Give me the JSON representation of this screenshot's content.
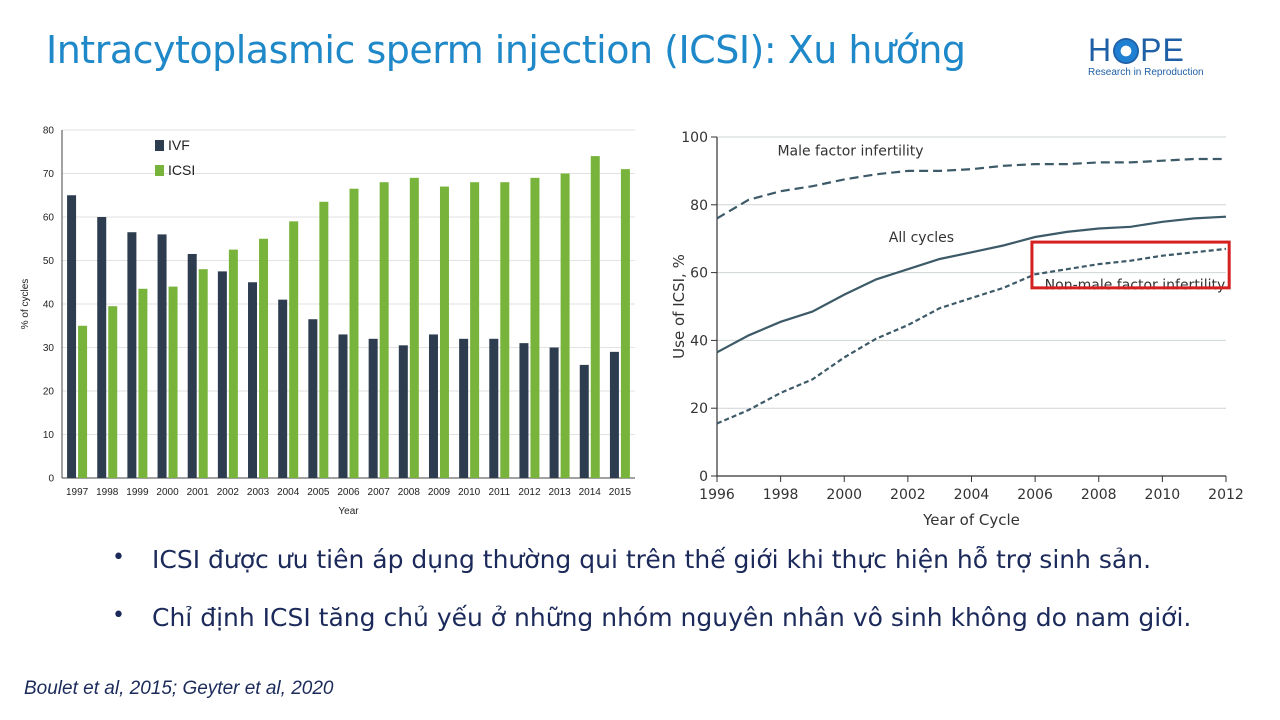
{
  "slide": {
    "title": "Intracytoplasmic sperm injection (ICSI): Xu hướng",
    "logo": {
      "word_left": "H",
      "word_right": "PE",
      "subtitle": "Research in Reproduction"
    },
    "bullets": [
      {
        "symbol": "•",
        "text": "ICSI được ưu tiên áp dụng thường qui trên thế giới khi thực hiện hỗ trợ sinh sản."
      },
      {
        "symbol": "•",
        "text": "Chỉ định ICSI tăng chủ yếu ở những nhóm nguyên nhân vô sinh không do nam giới."
      }
    ],
    "citation": "Boulet et al, 2015; Geyter et al, 2020"
  },
  "colors": {
    "title": "#1e88c8",
    "ivf": "#2d3c4e",
    "icsi": "#78b43c",
    "line": "#3d5a68",
    "highlight_box": "#d42020",
    "text": "#1b2a5a"
  },
  "chart_data": [
    {
      "type": "bar",
      "title": "",
      "xlabel": "Year",
      "ylabel": "% of cycles",
      "ylim": [
        0,
        80
      ],
      "yticks": [
        0,
        10,
        20,
        30,
        40,
        50,
        60,
        70,
        80
      ],
      "categories": [
        "1997",
        "1998",
        "1999",
        "2000",
        "2001",
        "2002",
        "2003",
        "2004",
        "2005",
        "2006",
        "2007",
        "2008",
        "2009",
        "2010",
        "2011",
        "2012",
        "2013",
        "2014",
        "2015"
      ],
      "series": [
        {
          "name": "IVF",
          "color": "#2d3c4e",
          "values": [
            65,
            60,
            56.5,
            56,
            51.5,
            47.5,
            45,
            41,
            36.5,
            33,
            32,
            30.5,
            33,
            32,
            32,
            31,
            30,
            26,
            29
          ]
        },
        {
          "name": "ICSI",
          "color": "#78b43c",
          "values": [
            35,
            39.5,
            43.5,
            44,
            48,
            52.5,
            55,
            59,
            63.5,
            66.5,
            68,
            69,
            67,
            68,
            68,
            69,
            70,
            74,
            71
          ]
        }
      ],
      "legend": "top-left",
      "grid": true
    },
    {
      "type": "line",
      "title": "",
      "xlabel": "Year of Cycle",
      "ylabel": "Use of ICSI, %",
      "xlim": [
        1996,
        2012
      ],
      "ylim": [
        0,
        100
      ],
      "xticks": [
        1996,
        1998,
        2000,
        2002,
        2004,
        2006,
        2008,
        2010,
        2012
      ],
      "yticks": [
        0,
        20,
        40,
        60,
        80,
        100
      ],
      "x": [
        1996,
        1997,
        1998,
        1999,
        2000,
        2001,
        2002,
        2003,
        2004,
        2005,
        2006,
        2007,
        2008,
        2009,
        2010,
        2011,
        2012
      ],
      "series": [
        {
          "name": "Male factor infertility",
          "style": "dashed",
          "values": [
            76,
            81.5,
            84,
            85.5,
            87.5,
            89,
            90,
            90,
            90.5,
            91.5,
            92,
            92,
            92.5,
            92.5,
            93,
            93.5,
            93.5
          ]
        },
        {
          "name": "All cycles",
          "style": "solid",
          "values": [
            36.5,
            41.5,
            45.5,
            48.5,
            53.5,
            58,
            61,
            64,
            66,
            68,
            70.5,
            72,
            73,
            73.5,
            75,
            76,
            76.5
          ]
        },
        {
          "name": "Non-male factor infertility",
          "style": "dotted",
          "values": [
            15.5,
            19.5,
            24.5,
            28.5,
            35,
            40.5,
            44.5,
            49.5,
            52.5,
            55.5,
            59.5,
            61,
            62.5,
            63.5,
            65,
            66,
            67
          ]
        }
      ],
      "highlighted_label": "Non-male factor infertility",
      "grid": true
    }
  ]
}
